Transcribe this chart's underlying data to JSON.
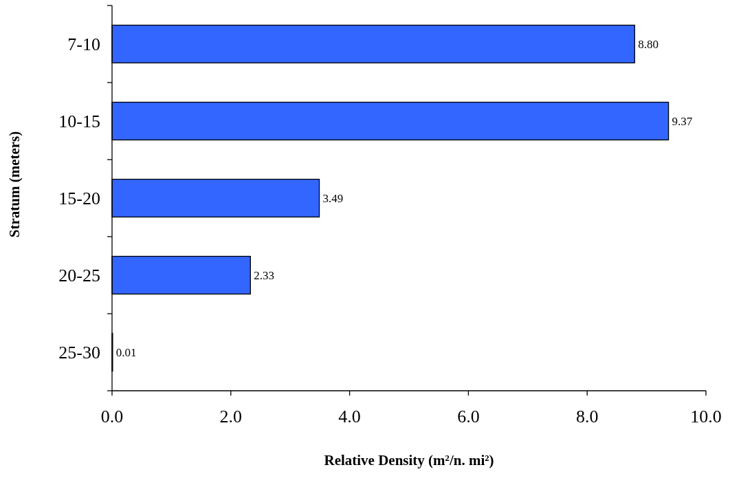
{
  "chart_data": {
    "type": "bar",
    "orientation": "horizontal",
    "categories": [
      "7-10",
      "10-15",
      "15-20",
      "20-25",
      "25-30"
    ],
    "values": [
      8.8,
      9.37,
      3.49,
      2.33,
      0.01
    ],
    "value_labels": [
      "8.80",
      "9.37",
      "3.49",
      "2.33",
      "0.01"
    ],
    "color": "#3366ff",
    "xlabel": "Relative Density (m²/n. mi²)",
    "ylabel": "Stratum (meters)",
    "xlim": [
      0,
      10
    ],
    "xticks": [
      {
        "value": 0,
        "label": "0.0"
      },
      {
        "value": 2,
        "label": "2.0"
      },
      {
        "value": 4,
        "label": "4.0"
      },
      {
        "value": 6,
        "label": "6.0"
      },
      {
        "value": 8,
        "label": "8.0"
      },
      {
        "value": 10,
        "label": "10.0"
      }
    ],
    "grid": false
  }
}
